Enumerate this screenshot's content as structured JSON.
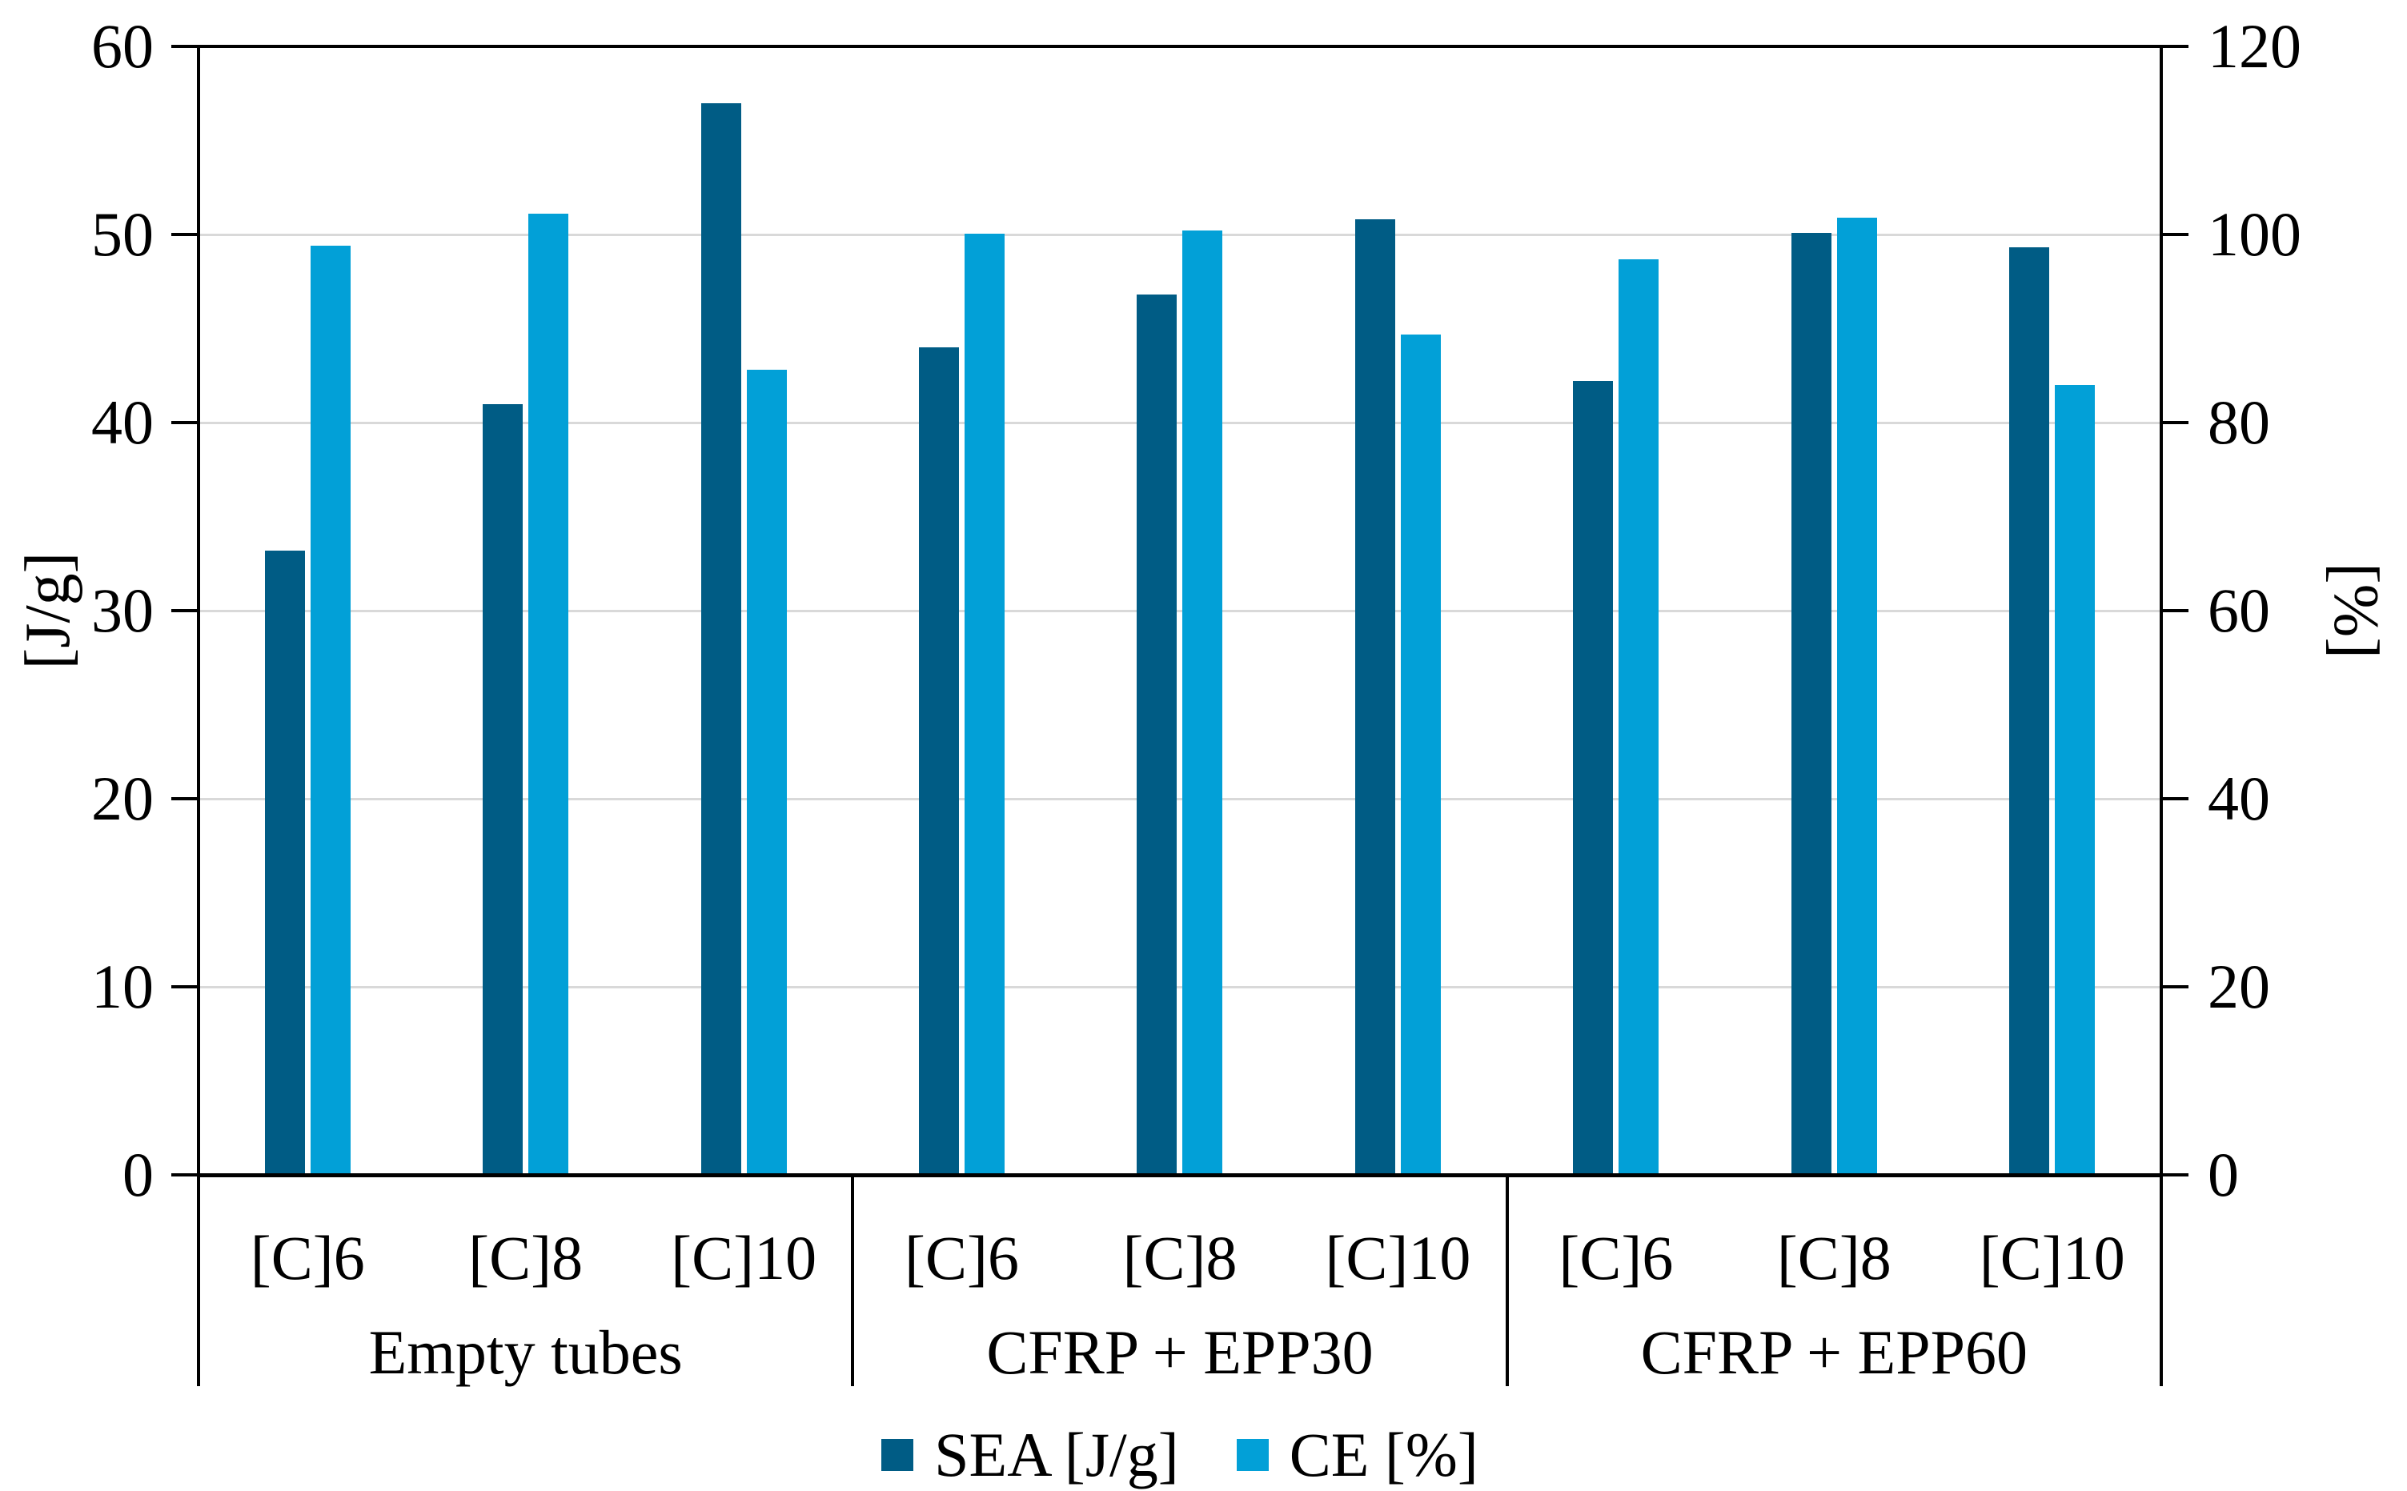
{
  "chart_data": {
    "type": "bar",
    "title": "",
    "group_labels": [
      "Empty tubes",
      "CFRP + EPP30",
      "CFRP + EPP60"
    ],
    "categories_per_group": [
      "[C]6",
      "[C]8",
      "[C]10"
    ],
    "categories": [
      "[C]6",
      "[C]8",
      "[C]10",
      "[C]6",
      "[C]8",
      "[C]10",
      "[C]6",
      "[C]8",
      "[C]10"
    ],
    "series": [
      {
        "name": "SEA [J/g]",
        "axis": "left",
        "color": "#005C85",
        "values": [
          33.2,
          41.0,
          57.0,
          44.0,
          46.8,
          50.8,
          42.2,
          50.1,
          49.3
        ]
      },
      {
        "name": "CE [%]",
        "axis": "right",
        "color": "#02A0D7",
        "values": [
          98.8,
          102.2,
          85.6,
          100.1,
          100.4,
          89.4,
          97.4,
          101.8,
          84.0
        ]
      }
    ],
    "left_axis": {
      "label": "[J/g]",
      "min": 0,
      "max": 60,
      "ticks": [
        60,
        50,
        40,
        30,
        20,
        10,
        0
      ]
    },
    "right_axis": {
      "label": "[%]",
      "min": 0,
      "max": 120,
      "ticks": [
        120,
        100,
        80,
        60,
        40,
        20,
        0
      ]
    },
    "grid": true,
    "gridline_color": "#D9D9D9",
    "axis_color": "#000000",
    "legend_position": "bottom"
  },
  "legend": {
    "items": [
      {
        "label": "SEA [J/g]",
        "color": "#005C85"
      },
      {
        "label": "CE [%]",
        "color": "#02A0D7"
      }
    ]
  }
}
